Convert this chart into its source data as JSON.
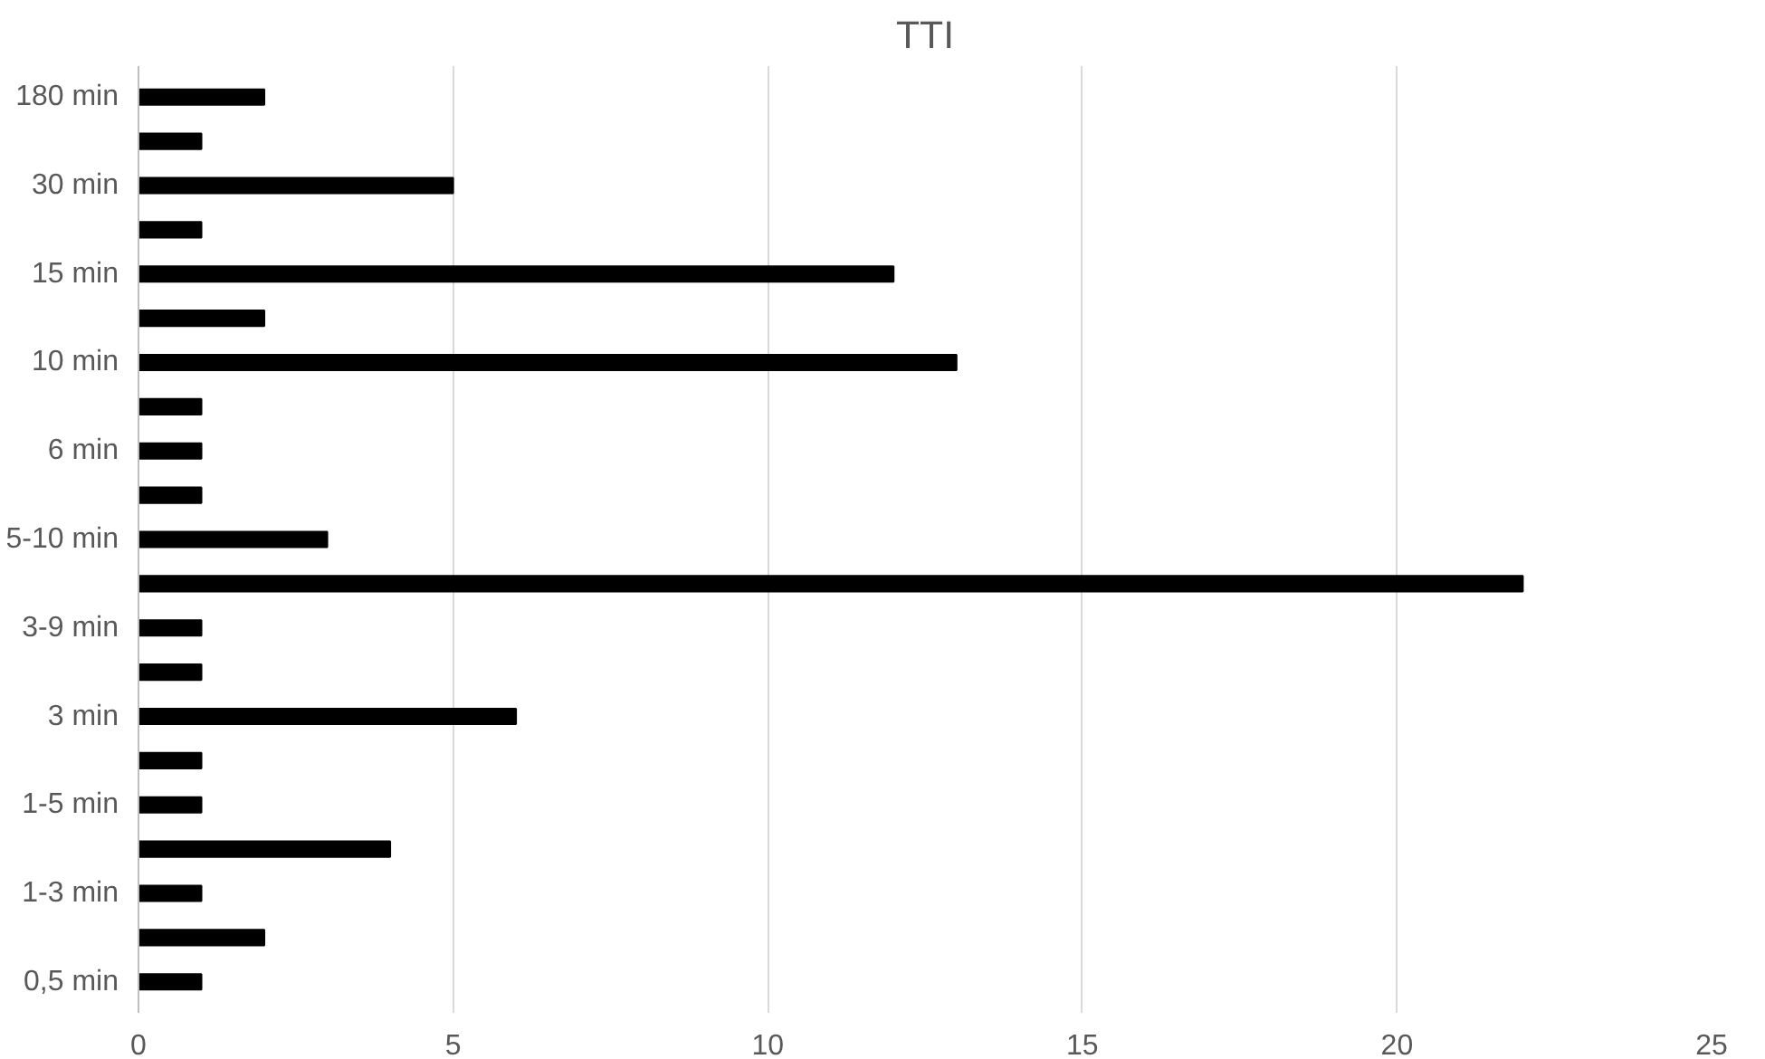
{
  "chart_data": {
    "type": "bar",
    "orientation": "horizontal",
    "title": "TTI",
    "categories": [
      "180 min",
      null,
      "30 min",
      null,
      "15 min",
      null,
      "10 min",
      null,
      "6 min",
      null,
      "5-10 min",
      null,
      "3-9 min",
      null,
      "3 min",
      null,
      "1-5 min",
      null,
      "1-3 min",
      null,
      "0,5 min"
    ],
    "values": [
      2,
      1,
      5,
      1,
      12,
      2,
      13,
      1,
      1,
      1,
      3,
      22,
      1,
      1,
      6,
      1,
      1,
      4,
      1,
      2,
      1
    ],
    "color": "#000000",
    "xlim": [
      0,
      25
    ],
    "xticks": [
      0,
      5,
      10,
      15,
      20,
      25
    ],
    "grid": "x"
  }
}
